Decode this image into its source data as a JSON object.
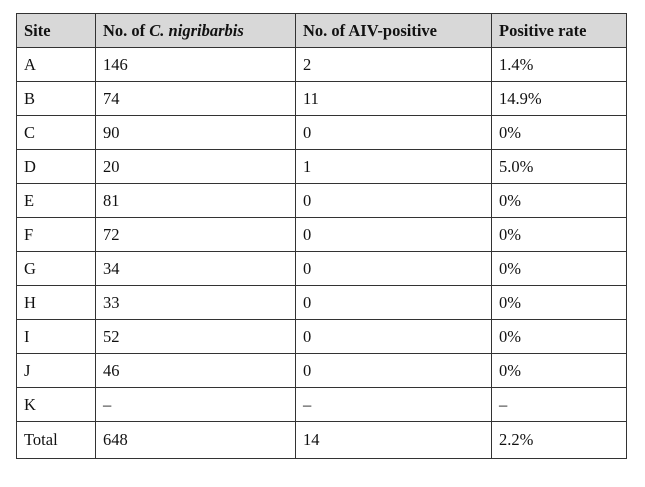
{
  "table": {
    "headers": {
      "site": "Site",
      "count_prefix": "No. of ",
      "count_species": "C. nigribarbis",
      "aiv_positive": "No. of AIV-positive",
      "positive_rate": "Positive rate"
    },
    "rows": [
      {
        "site": "A",
        "count": "146",
        "positive": "2",
        "rate": "1.4%"
      },
      {
        "site": "B",
        "count": "74",
        "positive": "11",
        "rate": "14.9%"
      },
      {
        "site": "C",
        "count": "90",
        "positive": "0",
        "rate": "0%"
      },
      {
        "site": "D",
        "count": "20",
        "positive": "1",
        "rate": "5.0%"
      },
      {
        "site": "E",
        "count": "81",
        "positive": "0",
        "rate": "0%"
      },
      {
        "site": "F",
        "count": "72",
        "positive": "0",
        "rate": "0%"
      },
      {
        "site": "G",
        "count": "34",
        "positive": "0",
        "rate": "0%"
      },
      {
        "site": "H",
        "count": "33",
        "positive": "0",
        "rate": "0%"
      },
      {
        "site": "I",
        "count": "52",
        "positive": "0",
        "rate": "0%"
      },
      {
        "site": "J",
        "count": "46",
        "positive": "0",
        "rate": "0%"
      },
      {
        "site": "K",
        "count": "–",
        "positive": "–",
        "rate": "–"
      },
      {
        "site": "Total",
        "count": "648",
        "positive": "14",
        "rate": "2.2%"
      }
    ]
  }
}
